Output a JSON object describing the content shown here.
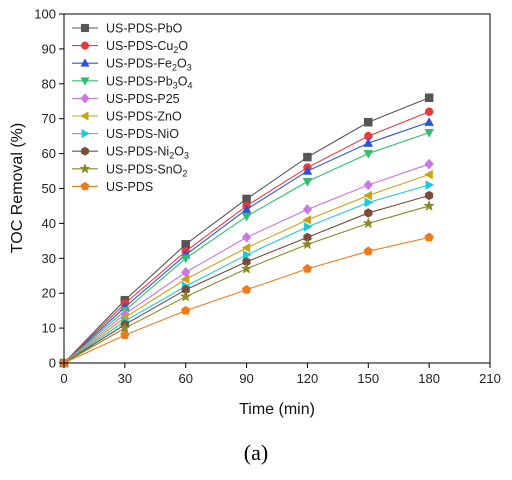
{
  "chart_data": {
    "type": "line",
    "title": "",
    "xlabel": "Time (min)",
    "ylabel": "TOC Removal (%)",
    "xlim": [
      0,
      210
    ],
    "ylim": [
      0,
      100
    ],
    "xticks": [
      0,
      30,
      60,
      90,
      120,
      150,
      180,
      210
    ],
    "yticks": [
      0,
      10,
      20,
      30,
      40,
      50,
      60,
      70,
      80,
      90,
      100
    ],
    "grid": false,
    "legend_position": "top-left",
    "x": [
      0,
      30,
      60,
      90,
      120,
      150,
      180
    ],
    "series": [
      {
        "name": "US-PDS-PbO",
        "label": {
          "base": "US-PDS-PbO",
          "sub1": "",
          "mid": "",
          "sub2": ""
        },
        "color": "#555555",
        "marker": "square",
        "values": [
          0,
          18,
          34,
          47,
          59,
          69,
          76
        ]
      },
      {
        "name": "US-PDS-Cu2O",
        "label": {
          "base": "US-PDS-Cu",
          "sub1": "2",
          "mid": "O",
          "sub2": ""
        },
        "color": "#e8383d",
        "marker": "circle",
        "values": [
          0,
          17,
          32,
          45,
          56,
          65,
          72
        ]
      },
      {
        "name": "US-PDS-Fe2O3",
        "label": {
          "base": "US-PDS-Fe",
          "sub1": "2",
          "mid": "O",
          "sub2": "3"
        },
        "color": "#2b55d4",
        "marker": "triangle-up",
        "values": [
          0,
          16,
          31,
          44,
          55,
          63,
          69
        ]
      },
      {
        "name": "US-PDS-Pb3O4",
        "label": {
          "base": "US-PDS-Pb",
          "sub1": "3",
          "mid": "O",
          "sub2": "4"
        },
        "color": "#2dbf6a",
        "marker": "triangle-down",
        "values": [
          0,
          15,
          30,
          42,
          52,
          60,
          66
        ]
      },
      {
        "name": "US-PDS-P25",
        "label": {
          "base": "US-PDS-P25",
          "sub1": "",
          "mid": "",
          "sub2": ""
        },
        "color": "#cc77e6",
        "marker": "diamond",
        "values": [
          0,
          14,
          26,
          36,
          44,
          51,
          57
        ]
      },
      {
        "name": "US-PDS-ZnO",
        "label": {
          "base": "US-PDS-ZnO",
          "sub1": "",
          "mid": "",
          "sub2": ""
        },
        "color": "#c9a316",
        "marker": "triangle-left",
        "values": [
          0,
          13,
          24,
          33,
          41,
          48,
          54
        ]
      },
      {
        "name": "US-PDS-NiO",
        "label": {
          "base": "US-PDS-NiO",
          "sub1": "",
          "mid": "",
          "sub2": ""
        },
        "color": "#1ec8e0",
        "marker": "triangle-right",
        "values": [
          0,
          12,
          22,
          31,
          39,
          46,
          51
        ]
      },
      {
        "name": "US-PDS-Ni2O3",
        "label": {
          "base": "US-PDS-Ni",
          "sub1": "2",
          "mid": "O",
          "sub2": "3"
        },
        "color": "#7a4a3a",
        "marker": "hexagon",
        "values": [
          0,
          11,
          21,
          29,
          36,
          43,
          48
        ]
      },
      {
        "name": "US-PDS-SnO2",
        "label": {
          "base": "US-PDS-SnO",
          "sub1": "2",
          "mid": "",
          "sub2": ""
        },
        "color": "#8a8a2a",
        "marker": "star",
        "values": [
          0,
          10,
          19,
          27,
          34,
          40,
          45
        ]
      },
      {
        "name": "US-PDS",
        "label": {
          "base": "US-PDS",
          "sub1": "",
          "mid": "",
          "sub2": ""
        },
        "color": "#f07a1a",
        "marker": "pentagon",
        "values": [
          0,
          8,
          15,
          21,
          27,
          32,
          36
        ]
      }
    ]
  },
  "caption": "(a)"
}
